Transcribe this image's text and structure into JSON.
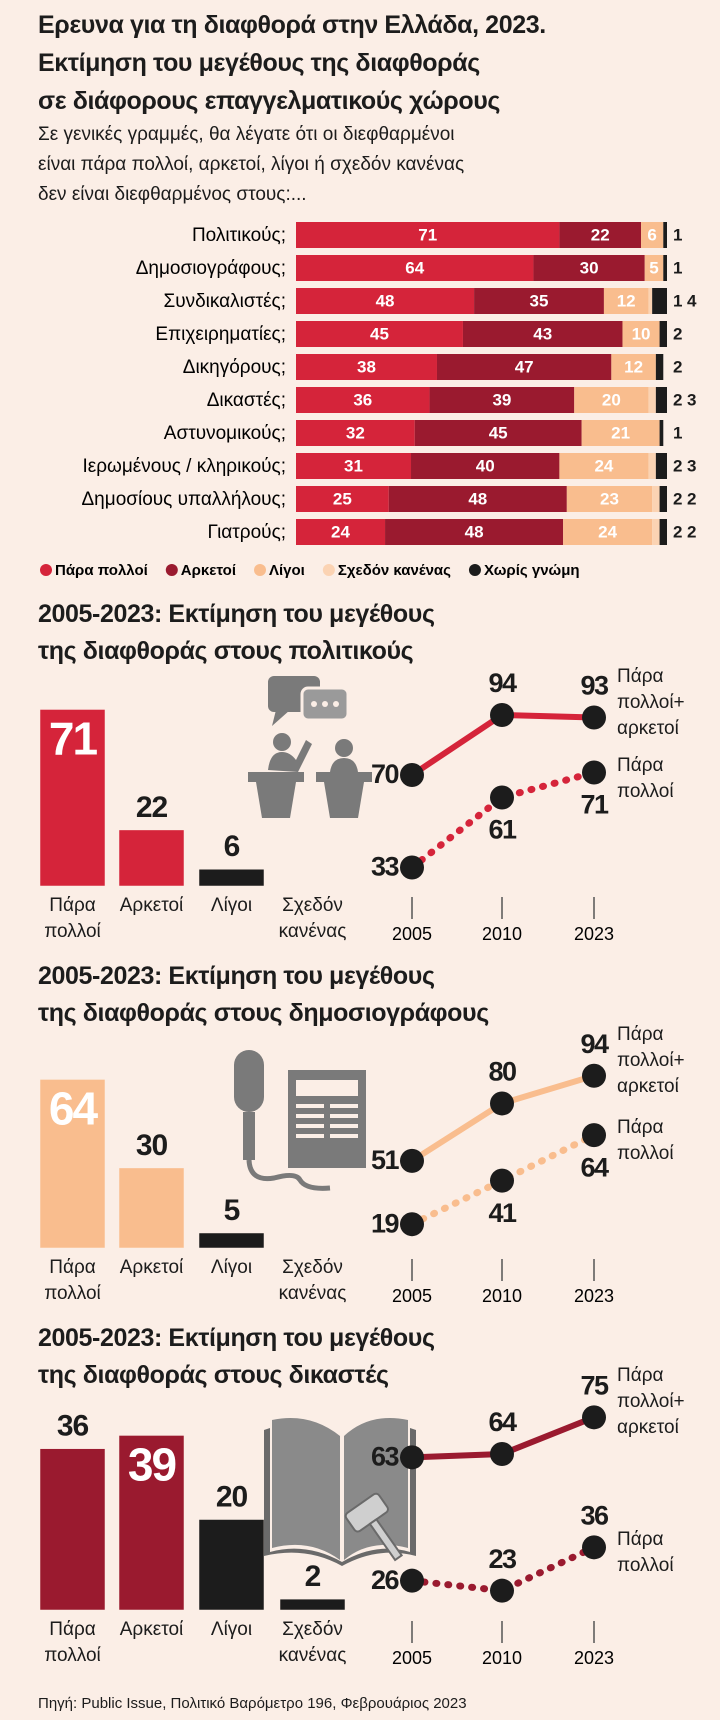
{
  "chart_data": [
    {
      "type": "stacked-bar",
      "title": "Ερευνα για τη διαφθορά στην Ελλάδα, 2023.\nΕκτίμηση του μεγέθους της διαφθοράς\nσε διάφορους επαγγελματικούς χώρους",
      "subtitle": "Σε γενικές γραμμές, θα λέγατε ότι οι διεφθαρμένοι\nείναι πάρα πολλοί, αρκετοί, λίγοι ή σχεδόν κανένας\nδεν είναι διεφθαρμένος στους:...",
      "categories": [
        "Πολιτικούς;",
        "Δημοσιογράφους;",
        "Συνδικαλιστές;",
        "Επιχειρηματίες;",
        "Δικηγόρους;",
        "Δικαστές;",
        "Αστυνομικούς;",
        "Ιερωμένους / κληρικούς;",
        "Δημοσίους υπαλλήλους;",
        "Γιατρούς;"
      ],
      "series": [
        {
          "name": "Πάρα πολλοί",
          "color": "#d5243a",
          "values": [
            71,
            64,
            48,
            45,
            38,
            36,
            32,
            31,
            25,
            24
          ]
        },
        {
          "name": "Αρκετοί",
          "color": "#9a1a2f",
          "values": [
            22,
            30,
            35,
            43,
            47,
            39,
            45,
            40,
            48,
            48
          ]
        },
        {
          "name": "Λίγοι",
          "color": "#f9bd8e",
          "values": [
            6,
            5,
            12,
            10,
            12,
            20,
            21,
            24,
            23,
            24
          ]
        },
        {
          "name": "Σχεδόν κανένας",
          "color": "#fbd3b3",
          "values": [
            0,
            0,
            1,
            0,
            0,
            2,
            0,
            2,
            2,
            2
          ]
        },
        {
          "name": "Χωρίς γνώμη",
          "color": "#1c1c1c",
          "values": [
            1,
            1,
            4,
            2,
            2,
            3,
            1,
            3,
            2,
            2
          ]
        }
      ],
      "xlim": [
        0,
        100
      ]
    },
    {
      "type": "bar",
      "title": "2005-2023: Εκτίμηση του μεγέθους\nτης διαφθοράς στους πολιτικούς",
      "categories": [
        "Πάρα\nπολλοί",
        "Αρκετοί",
        "Λίγοι",
        "Σχεδόν\nκανένας"
      ],
      "values": [
        71,
        22,
        6,
        0
      ],
      "colors": [
        "#d5243a",
        "#d5243a",
        "#1c1c1c",
        "#1c1c1c"
      ],
      "ylim": [
        0,
        72
      ]
    },
    {
      "type": "line",
      "categories": [
        "2005",
        "2010",
        "2023"
      ],
      "ylim": [
        28,
        104
      ],
      "series": [
        {
          "name": "Πάρα\nπολλοί+\nαρκετοί",
          "color": "#d5243a",
          "style": "solid",
          "values": [
            70,
            94,
            93
          ]
        },
        {
          "name": "Πάρα\nπολλοί",
          "color": "#d5243a",
          "style": "dotted",
          "values": [
            33,
            61,
            71
          ]
        }
      ]
    },
    {
      "type": "bar",
      "title": "2005-2023: Εκτίμηση του μεγέθους\nτης διαφθοράς στους δημοσιογράφους",
      "categories": [
        "Πάρα\nπολλοί",
        "Αρκετοί",
        "Λίγοι",
        "Σχεδόν\nκανένας"
      ],
      "values": [
        64,
        30,
        5,
        0
      ],
      "colors": [
        "#f9bd8e",
        "#f9bd8e",
        "#1c1c1c",
        "#1c1c1c"
      ],
      "ylim": [
        0,
        68
      ]
    },
    {
      "type": "line",
      "categories": [
        "2005",
        "2010",
        "2023"
      ],
      "ylim": [
        10,
        106
      ],
      "series": [
        {
          "name": "Πάρα\nπολλοί+\nαρκετοί",
          "color": "#f9bd8e",
          "style": "solid",
          "values": [
            51,
            80,
            94
          ]
        },
        {
          "name": "Πάρα\nπολλοί",
          "color": "#f9bd8e",
          "style": "dotted",
          "values": [
            19,
            41,
            64
          ]
        }
      ]
    },
    {
      "type": "bar",
      "title": "2005-2023: Εκτίμηση του μεγέθους\nτης διαφθοράς στους δικαστές",
      "categories": [
        "Πάρα\nπολλοί",
        "Αρκετοί",
        "Λίγοι",
        "Σχεδόν\nκανένας"
      ],
      "values": [
        36,
        39,
        20,
        2
      ],
      "colors": [
        "#9a1a2f",
        "#9a1a2f",
        "#1c1c1c",
        "#1c1c1c"
      ],
      "ylim": [
        0,
        40
      ]
    },
    {
      "type": "line",
      "categories": [
        "2005",
        "2010",
        "2023"
      ],
      "ylim": [
        19,
        76
      ],
      "series": [
        {
          "name": "Πάρα\nπολλοί+\nαρκετοί",
          "color": "#9a1a2f",
          "style": "solid",
          "values": [
            63,
            64,
            75
          ]
        },
        {
          "name": "Πάρα\nπολλοί",
          "color": "#9a1a2f",
          "style": "dotted",
          "values": [
            26,
            23,
            36
          ]
        }
      ]
    }
  ],
  "source": "Πηγή: Public Issue, Πολιτικό Βαρόμετρο 196, Φεβρουάριος 2023"
}
